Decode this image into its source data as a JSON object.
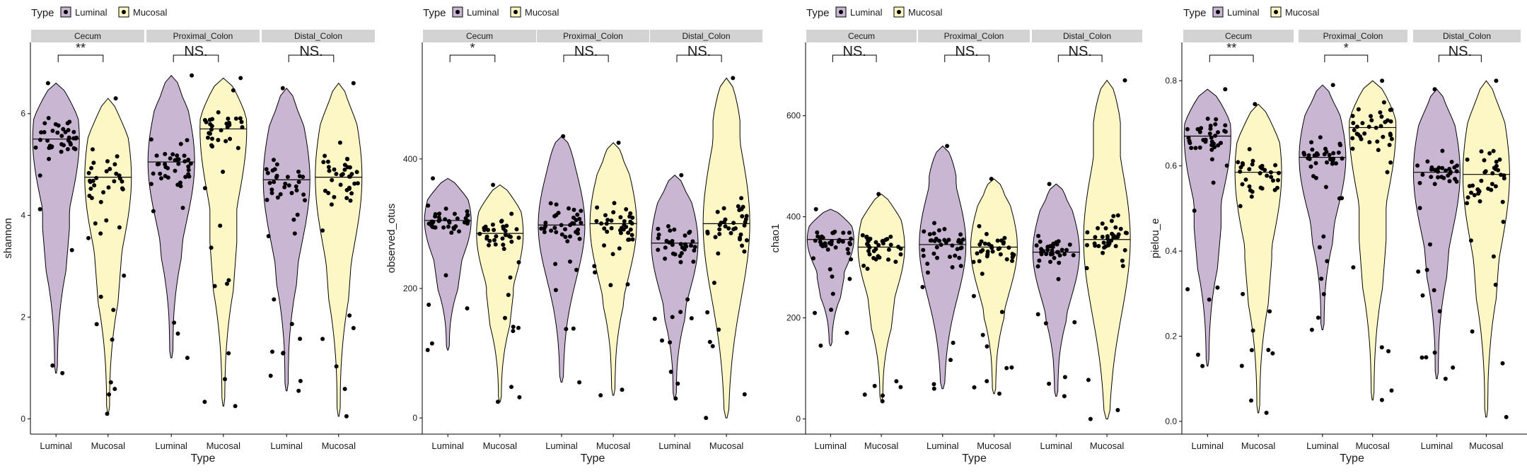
{
  "legend": {
    "title": "Type",
    "items": [
      {
        "label": "Luminal",
        "color": "#C9B6D3"
      },
      {
        "label": "Mucosal",
        "color": "#FDF7C6"
      }
    ]
  },
  "chart_data": [
    {
      "type": "violin",
      "ylabel": "shannon",
      "xlabel": "Type",
      "ylim": [
        -0.3,
        7.4
      ],
      "yticks": [
        0,
        2,
        4,
        6
      ],
      "facets": [
        {
          "name": "Cecum",
          "significance": "**",
          "luminal": {
            "median": 5.5,
            "min": 0.9,
            "max": 6.6
          },
          "mucosal": {
            "median": 4.75,
            "min": 0.1,
            "max": 6.3
          }
        },
        {
          "name": "Proximal_Colon",
          "significance": "NS.",
          "luminal": {
            "median": 5.05,
            "min": 1.2,
            "max": 6.75
          },
          "mucosal": {
            "median": 5.7,
            "min": 0.25,
            "max": 6.7
          }
        },
        {
          "name": "Distal_Colon",
          "significance": "NS.",
          "luminal": {
            "median": 4.7,
            "min": 0.55,
            "max": 6.5
          },
          "mucosal": {
            "median": 4.75,
            "min": 0.05,
            "max": 6.6
          }
        }
      ]
    },
    {
      "type": "violin",
      "ylabel": "observed_otus",
      "xlabel": "Type",
      "ylim": [
        -25,
        580
      ],
      "yticks": [
        0,
        200,
        400
      ],
      "facets": [
        {
          "name": "Cecum",
          "significance": "*",
          "luminal": {
            "median": 305,
            "min": 105,
            "max": 370
          },
          "mucosal": {
            "median": 285,
            "min": 25,
            "max": 360
          }
        },
        {
          "name": "Proximal_Colon",
          "significance": "NS.",
          "luminal": {
            "median": 298,
            "min": 55,
            "max": 435
          },
          "mucosal": {
            "median": 300,
            "min": 35,
            "max": 425
          }
        },
        {
          "name": "Distal_Colon",
          "significance": "NS.",
          "luminal": {
            "median": 270,
            "min": 30,
            "max": 375
          },
          "mucosal": {
            "median": 300,
            "min": 0,
            "max": 525
          }
        }
      ]
    },
    {
      "type": "violin",
      "ylabel": "chao1",
      "xlabel": "Type",
      "ylim": [
        -30,
        745
      ],
      "yticks": [
        0,
        200,
        400,
        600
      ],
      "facets": [
        {
          "name": "Cecum",
          "significance": "NS.",
          "luminal": {
            "median": 355,
            "min": 145,
            "max": 415
          },
          "mucosal": {
            "median": 340,
            "min": 35,
            "max": 445
          }
        },
        {
          "name": "Proximal_Colon",
          "significance": "NS.",
          "luminal": {
            "median": 345,
            "min": 60,
            "max": 540
          },
          "mucosal": {
            "median": 340,
            "min": 50,
            "max": 475
          }
        },
        {
          "name": "Distal_Colon",
          "significance": "NS.",
          "luminal": {
            "median": 330,
            "min": 45,
            "max": 465
          },
          "mucosal": {
            "median": 355,
            "min": 0,
            "max": 670
          }
        }
      ]
    },
    {
      "type": "violin",
      "ylabel": "pielou_e",
      "xlabel": "Type",
      "ylim": [
        -0.03,
        0.89
      ],
      "yticks": [
        0.0,
        0.2,
        0.4,
        0.6,
        0.8
      ],
      "tick_format": "0.0",
      "facets": [
        {
          "name": "Cecum",
          "significance": "**",
          "luminal": {
            "median": 0.67,
            "min": 0.13,
            "max": 0.78
          },
          "mucosal": {
            "median": 0.585,
            "min": 0.02,
            "max": 0.745
          }
        },
        {
          "name": "Proximal_Colon",
          "significance": "*",
          "luminal": {
            "median": 0.62,
            "min": 0.215,
            "max": 0.79
          },
          "mucosal": {
            "median": 0.69,
            "min": 0.05,
            "max": 0.8
          }
        },
        {
          "name": "Distal_Colon",
          "significance": "NS.",
          "luminal": {
            "median": 0.585,
            "min": 0.1,
            "max": 0.78
          },
          "mucosal": {
            "median": 0.58,
            "min": 0.01,
            "max": 0.8
          }
        }
      ]
    }
  ],
  "colors": {
    "luminal_fill": "#C9B6D3",
    "mucosal_fill": "#FDF7C6",
    "strip_fill": "#D3D3D3",
    "points": "#000000"
  },
  "x_categories": [
    "Luminal",
    "Mucosal"
  ]
}
